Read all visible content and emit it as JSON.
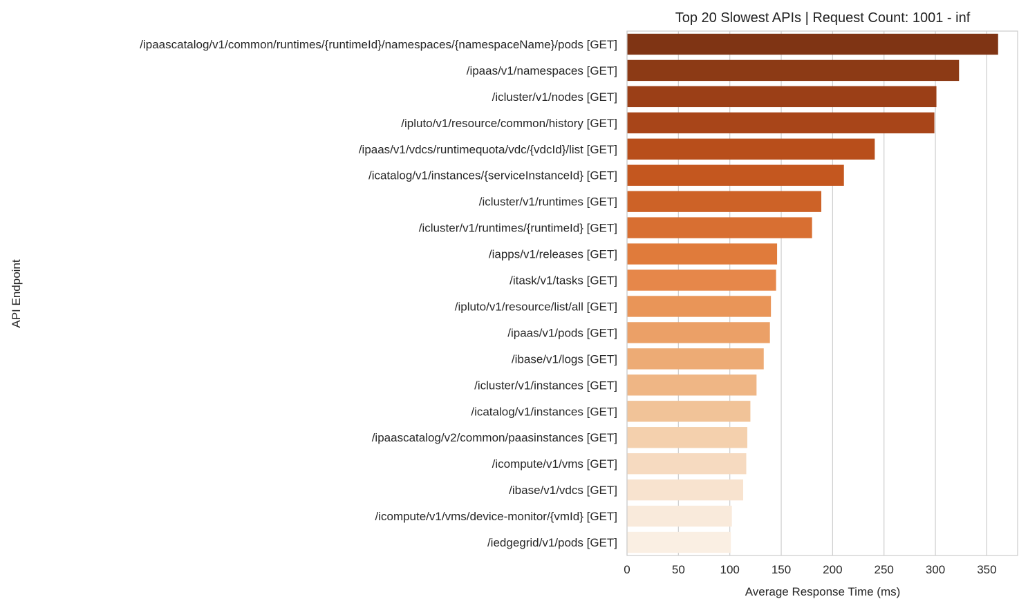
{
  "chart_data": {
    "type": "bar",
    "orientation": "horizontal",
    "title": "Top 20 Slowest APIs | Request Count: 1001 - inf",
    "xlabel": "Average Response Time (ms)",
    "ylabel": "API Endpoint",
    "xlim": [
      0,
      380
    ],
    "xticks": [
      0,
      50,
      100,
      150,
      200,
      250,
      300,
      350
    ],
    "grid": "vertical",
    "legend": "none",
    "categories": [
      "/ipaascatalog/v1/common/runtimes/{runtimeId}/namespaces/{namespaceName}/pods [GET]",
      "/ipaas/v1/namespaces [GET]",
      "/icluster/v1/nodes [GET]",
      "/ipluto/v1/resource/common/history [GET]",
      "/ipaas/v1/vdcs/runtimequota/vdc/{vdcId}/list [GET]",
      "/icatalog/v1/instances/{serviceInstanceId} [GET]",
      "/icluster/v1/runtimes [GET]",
      "/icluster/v1/runtimes/{runtimeId} [GET]",
      "/iapps/v1/releases [GET]",
      "/itask/v1/tasks [GET]",
      "/ipluto/v1/resource/list/all [GET]",
      "/ipaas/v1/pods [GET]",
      "/ibase/v1/logs [GET]",
      "/icluster/v1/instances [GET]",
      "/icatalog/v1/instances [GET]",
      "/ipaascatalog/v2/common/paasinstances [GET]",
      "/icompute/v1/vms [GET]",
      "/ibase/v1/vdcs [GET]",
      "/icompute/v1/vms/device-monitor/{vmId} [GET]",
      "/iedgegrid/v1/pods [GET]"
    ],
    "values": [
      361,
      323,
      301,
      299,
      241,
      211,
      189,
      180,
      146,
      145,
      140,
      139,
      133,
      126,
      120,
      117,
      116,
      113,
      102,
      101
    ],
    "colors": [
      "#7f3414",
      "#8c3a15",
      "#9b3f17",
      "#a84519",
      "#b84e1b",
      "#c4571f",
      "#cd6227",
      "#d86f32",
      "#e07b3b",
      "#e6874a",
      "#e99558",
      "#eba067",
      "#edab75",
      "#efb685",
      "#f1c398",
      "#f4d0ad",
      "#f6dac0",
      "#f8e3cf",
      "#f9eadb",
      "#faefe3"
    ],
    "grid_color": "#cccccc"
  }
}
